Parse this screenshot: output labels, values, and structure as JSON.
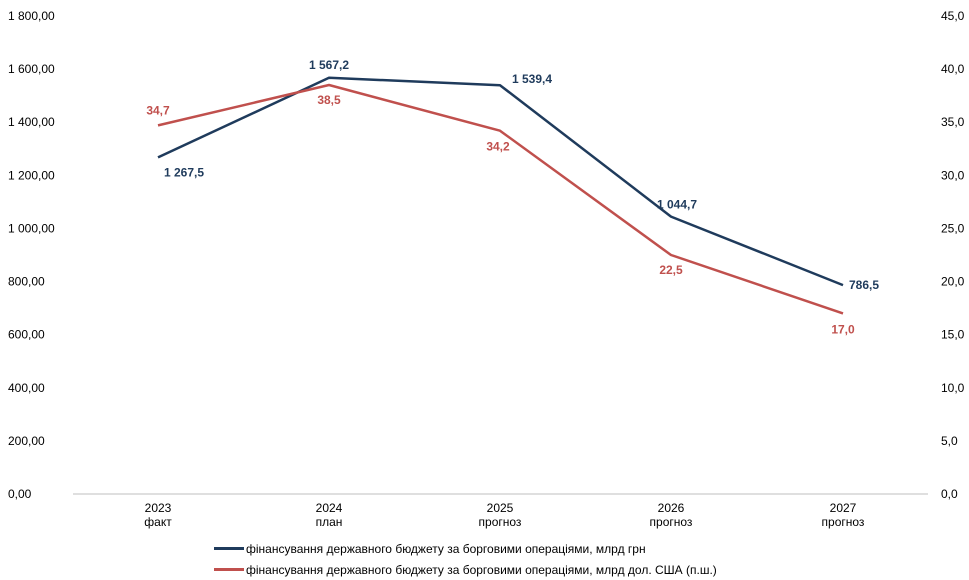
{
  "chart_data": {
    "type": "line",
    "categories": [
      [
        "2023",
        "факт"
      ],
      [
        "2024",
        "план"
      ],
      [
        "2025",
        "прогноз"
      ],
      [
        "2026",
        "прогноз"
      ],
      [
        "2027",
        "прогноз"
      ]
    ],
    "y_left": {
      "ylim": [
        0,
        1800
      ],
      "ticks": [
        "0,00",
        "200,00",
        "400,00",
        "600,00",
        "800,00",
        "1 000,00",
        "1 200,00",
        "1 400,00",
        "1 600,00",
        "1 800,00"
      ]
    },
    "y_right": {
      "ylim": [
        0,
        45
      ],
      "ticks": [
        "0,0",
        "5,0",
        "10,0",
        "15,0",
        "20,0",
        "25,0",
        "30,0",
        "35,0",
        "40,0",
        "45,0"
      ]
    },
    "series": [
      {
        "name": "фінансування державного бюджету за борговими операціями, млрд грн",
        "axis": "left",
        "color": "#1f3b5c",
        "values": [
          1267.5,
          1567.2,
          1539.4,
          1044.7,
          786.5
        ],
        "labels": [
          "1 267,5",
          "1 567,2",
          "1 539,4",
          "1 044,7",
          "786,5"
        ]
      },
      {
        "name": "фінансування державного бюджету за борговими операціями, млрд дол. США (п.ш.)",
        "axis": "right",
        "color": "#c0504d",
        "values": [
          34.7,
          38.5,
          34.2,
          22.5,
          17.0
        ],
        "labels": [
          "34,7",
          "38,5",
          "34,2",
          "22,5",
          "17,0"
        ]
      }
    ],
    "grid": false,
    "legend_position": "bottom"
  }
}
